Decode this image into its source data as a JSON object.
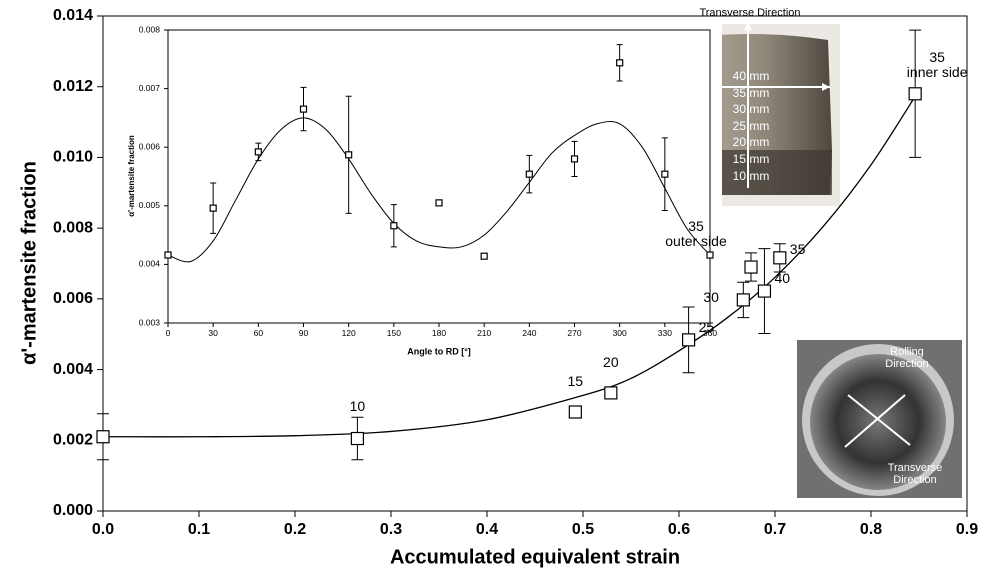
{
  "chart_data": [
    {
      "type": "scatter",
      "xlabel": "Accumulated equivalent strain",
      "ylabel": "α'-martensite fraction",
      "x": [
        0.0,
        0.265,
        0.492,
        0.529,
        0.61,
        0.667,
        0.675,
        0.689,
        0.705,
        0.846
      ],
      "values": [
        0.0021,
        0.00205,
        0.0028,
        0.00334,
        0.00484,
        0.00597,
        0.0069,
        0.00622,
        0.00716,
        0.0118
      ],
      "errors": [
        0.00065,
        0.0006,
        null,
        0.00015,
        0.00093,
        0.0005,
        0.0004,
        0.0012,
        0.0004,
        0.0018
      ],
      "point_labels": [
        null,
        "10",
        "15",
        "20",
        "25",
        "30",
        "35\nouter side",
        "40",
        "35",
        "35\ninner side"
      ],
      "fit": {
        "x": [
          0,
          0.1,
          0.2,
          0.3,
          0.4,
          0.5,
          0.55,
          0.6,
          0.65,
          0.7,
          0.75,
          0.8,
          0.85
        ],
        "values": [
          0.0021,
          0.0021,
          0.00213,
          0.00225,
          0.00258,
          0.00327,
          0.00375,
          0.00453,
          0.00546,
          0.00661,
          0.00804,
          0.00979,
          0.0119
        ]
      },
      "color": "#000000",
      "xlim": [
        0,
        0.9
      ],
      "xticks": [
        {
          "value": 0,
          "label": "0.0"
        },
        0.1,
        0.2,
        0.3,
        0.4,
        0.5,
        0.6,
        0.7,
        0.8,
        0.9
      ],
      "ylim": [
        0,
        0.014
      ],
      "yticks": [
        {
          "value": 0,
          "label": "0.000"
        },
        0.002,
        0.004,
        0.006,
        0.008,
        {
          "value": 0.01,
          "label": "0.010"
        },
        0.012,
        0.014
      ],
      "grid": false,
      "photos": [
        {
          "labels": [
            "Transverse Direction",
            "40 mm",
            "35 mm",
            "30 mm",
            "25 mm",
            "20 mm",
            "15 mm",
            "10 mm"
          ]
        },
        {
          "labels": [
            "Rolling Direction",
            "Transverse Direction"
          ]
        }
      ]
    },
    {
      "type": "scatter",
      "xlabel": "Angle to RD [°]",
      "ylabel": "α'-martensite fraction",
      "x": [
        0,
        30,
        60,
        90,
        120,
        150,
        180,
        210,
        240,
        270,
        300,
        330,
        360
      ],
      "values": [
        0.00416,
        0.00496,
        0.00592,
        0.00665,
        0.00587,
        0.00466,
        0.00505,
        0.00414,
        0.00554,
        0.0058,
        0.00744,
        0.00554,
        0.00416
      ],
      "errors": [
        3e-05,
        0.00043,
        0.00015,
        0.00037,
        0.001,
        0.00036,
        4e-05,
        3e-05,
        0.00032,
        0.0003,
        0.00031,
        0.00062,
        3e-05
      ],
      "fit": {
        "x": [
          0,
          15,
          30,
          45,
          60,
          75,
          90,
          105,
          120,
          135,
          150,
          165,
          180,
          195,
          210,
          225,
          240,
          255,
          270,
          285,
          300,
          315,
          330,
          345,
          360
        ],
        "values": [
          0.00416,
          0.00405,
          0.0044,
          0.0051,
          0.0058,
          0.0063,
          0.0065,
          0.0063,
          0.0058,
          0.0052,
          0.0047,
          0.0044,
          0.0043,
          0.0043,
          0.0045,
          0.0049,
          0.0054,
          0.0059,
          0.0062,
          0.0064,
          0.0064,
          0.006,
          0.0053,
          0.0046,
          0.00416
        ]
      },
      "color": "#000000",
      "xlim": [
        0,
        360
      ],
      "xticks": [
        0,
        30,
        60,
        90,
        120,
        150,
        180,
        210,
        240,
        270,
        300,
        330,
        360
      ],
      "ylim": [
        0.003,
        0.008
      ],
      "yticks": [
        0.003,
        0.004,
        0.005,
        0.006,
        0.007,
        0.008
      ],
      "grid": false
    }
  ]
}
